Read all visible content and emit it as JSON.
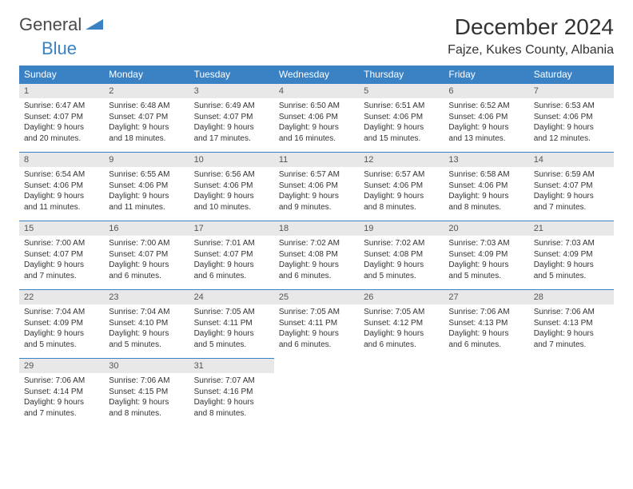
{
  "logo": {
    "text_general": "General",
    "text_blue": "Blue"
  },
  "title": "December 2024",
  "location": "Fajze, Kukes County, Albania",
  "colors": {
    "header_bg": "#3b82c4",
    "header_text": "#ffffff",
    "daynum_bg": "#e8e8e8",
    "body_text": "#333333",
    "logo_gray": "#4a4a4a",
    "logo_blue": "#3b82c4"
  },
  "day_headers": [
    "Sunday",
    "Monday",
    "Tuesday",
    "Wednesday",
    "Thursday",
    "Friday",
    "Saturday"
  ],
  "weeks": [
    [
      {
        "n": "1",
        "sunrise": "Sunrise: 6:47 AM",
        "sunset": "Sunset: 4:07 PM",
        "dl1": "Daylight: 9 hours",
        "dl2": "and 20 minutes."
      },
      {
        "n": "2",
        "sunrise": "Sunrise: 6:48 AM",
        "sunset": "Sunset: 4:07 PM",
        "dl1": "Daylight: 9 hours",
        "dl2": "and 18 minutes."
      },
      {
        "n": "3",
        "sunrise": "Sunrise: 6:49 AM",
        "sunset": "Sunset: 4:07 PM",
        "dl1": "Daylight: 9 hours",
        "dl2": "and 17 minutes."
      },
      {
        "n": "4",
        "sunrise": "Sunrise: 6:50 AM",
        "sunset": "Sunset: 4:06 PM",
        "dl1": "Daylight: 9 hours",
        "dl2": "and 16 minutes."
      },
      {
        "n": "5",
        "sunrise": "Sunrise: 6:51 AM",
        "sunset": "Sunset: 4:06 PM",
        "dl1": "Daylight: 9 hours",
        "dl2": "and 15 minutes."
      },
      {
        "n": "6",
        "sunrise": "Sunrise: 6:52 AM",
        "sunset": "Sunset: 4:06 PM",
        "dl1": "Daylight: 9 hours",
        "dl2": "and 13 minutes."
      },
      {
        "n": "7",
        "sunrise": "Sunrise: 6:53 AM",
        "sunset": "Sunset: 4:06 PM",
        "dl1": "Daylight: 9 hours",
        "dl2": "and 12 minutes."
      }
    ],
    [
      {
        "n": "8",
        "sunrise": "Sunrise: 6:54 AM",
        "sunset": "Sunset: 4:06 PM",
        "dl1": "Daylight: 9 hours",
        "dl2": "and 11 minutes."
      },
      {
        "n": "9",
        "sunrise": "Sunrise: 6:55 AM",
        "sunset": "Sunset: 4:06 PM",
        "dl1": "Daylight: 9 hours",
        "dl2": "and 11 minutes."
      },
      {
        "n": "10",
        "sunrise": "Sunrise: 6:56 AM",
        "sunset": "Sunset: 4:06 PM",
        "dl1": "Daylight: 9 hours",
        "dl2": "and 10 minutes."
      },
      {
        "n": "11",
        "sunrise": "Sunrise: 6:57 AM",
        "sunset": "Sunset: 4:06 PM",
        "dl1": "Daylight: 9 hours",
        "dl2": "and 9 minutes."
      },
      {
        "n": "12",
        "sunrise": "Sunrise: 6:57 AM",
        "sunset": "Sunset: 4:06 PM",
        "dl1": "Daylight: 9 hours",
        "dl2": "and 8 minutes."
      },
      {
        "n": "13",
        "sunrise": "Sunrise: 6:58 AM",
        "sunset": "Sunset: 4:06 PM",
        "dl1": "Daylight: 9 hours",
        "dl2": "and 8 minutes."
      },
      {
        "n": "14",
        "sunrise": "Sunrise: 6:59 AM",
        "sunset": "Sunset: 4:07 PM",
        "dl1": "Daylight: 9 hours",
        "dl2": "and 7 minutes."
      }
    ],
    [
      {
        "n": "15",
        "sunrise": "Sunrise: 7:00 AM",
        "sunset": "Sunset: 4:07 PM",
        "dl1": "Daylight: 9 hours",
        "dl2": "and 7 minutes."
      },
      {
        "n": "16",
        "sunrise": "Sunrise: 7:00 AM",
        "sunset": "Sunset: 4:07 PM",
        "dl1": "Daylight: 9 hours",
        "dl2": "and 6 minutes."
      },
      {
        "n": "17",
        "sunrise": "Sunrise: 7:01 AM",
        "sunset": "Sunset: 4:07 PM",
        "dl1": "Daylight: 9 hours",
        "dl2": "and 6 minutes."
      },
      {
        "n": "18",
        "sunrise": "Sunrise: 7:02 AM",
        "sunset": "Sunset: 4:08 PM",
        "dl1": "Daylight: 9 hours",
        "dl2": "and 6 minutes."
      },
      {
        "n": "19",
        "sunrise": "Sunrise: 7:02 AM",
        "sunset": "Sunset: 4:08 PM",
        "dl1": "Daylight: 9 hours",
        "dl2": "and 5 minutes."
      },
      {
        "n": "20",
        "sunrise": "Sunrise: 7:03 AM",
        "sunset": "Sunset: 4:09 PM",
        "dl1": "Daylight: 9 hours",
        "dl2": "and 5 minutes."
      },
      {
        "n": "21",
        "sunrise": "Sunrise: 7:03 AM",
        "sunset": "Sunset: 4:09 PM",
        "dl1": "Daylight: 9 hours",
        "dl2": "and 5 minutes."
      }
    ],
    [
      {
        "n": "22",
        "sunrise": "Sunrise: 7:04 AM",
        "sunset": "Sunset: 4:09 PM",
        "dl1": "Daylight: 9 hours",
        "dl2": "and 5 minutes."
      },
      {
        "n": "23",
        "sunrise": "Sunrise: 7:04 AM",
        "sunset": "Sunset: 4:10 PM",
        "dl1": "Daylight: 9 hours",
        "dl2": "and 5 minutes."
      },
      {
        "n": "24",
        "sunrise": "Sunrise: 7:05 AM",
        "sunset": "Sunset: 4:11 PM",
        "dl1": "Daylight: 9 hours",
        "dl2": "and 5 minutes."
      },
      {
        "n": "25",
        "sunrise": "Sunrise: 7:05 AM",
        "sunset": "Sunset: 4:11 PM",
        "dl1": "Daylight: 9 hours",
        "dl2": "and 6 minutes."
      },
      {
        "n": "26",
        "sunrise": "Sunrise: 7:05 AM",
        "sunset": "Sunset: 4:12 PM",
        "dl1": "Daylight: 9 hours",
        "dl2": "and 6 minutes."
      },
      {
        "n": "27",
        "sunrise": "Sunrise: 7:06 AM",
        "sunset": "Sunset: 4:13 PM",
        "dl1": "Daylight: 9 hours",
        "dl2": "and 6 minutes."
      },
      {
        "n": "28",
        "sunrise": "Sunrise: 7:06 AM",
        "sunset": "Sunset: 4:13 PM",
        "dl1": "Daylight: 9 hours",
        "dl2": "and 7 minutes."
      }
    ],
    [
      {
        "n": "29",
        "sunrise": "Sunrise: 7:06 AM",
        "sunset": "Sunset: 4:14 PM",
        "dl1": "Daylight: 9 hours",
        "dl2": "and 7 minutes."
      },
      {
        "n": "30",
        "sunrise": "Sunrise: 7:06 AM",
        "sunset": "Sunset: 4:15 PM",
        "dl1": "Daylight: 9 hours",
        "dl2": "and 8 minutes."
      },
      {
        "n": "31",
        "sunrise": "Sunrise: 7:07 AM",
        "sunset": "Sunset: 4:16 PM",
        "dl1": "Daylight: 9 hours",
        "dl2": "and 8 minutes."
      },
      null,
      null,
      null,
      null
    ]
  ]
}
